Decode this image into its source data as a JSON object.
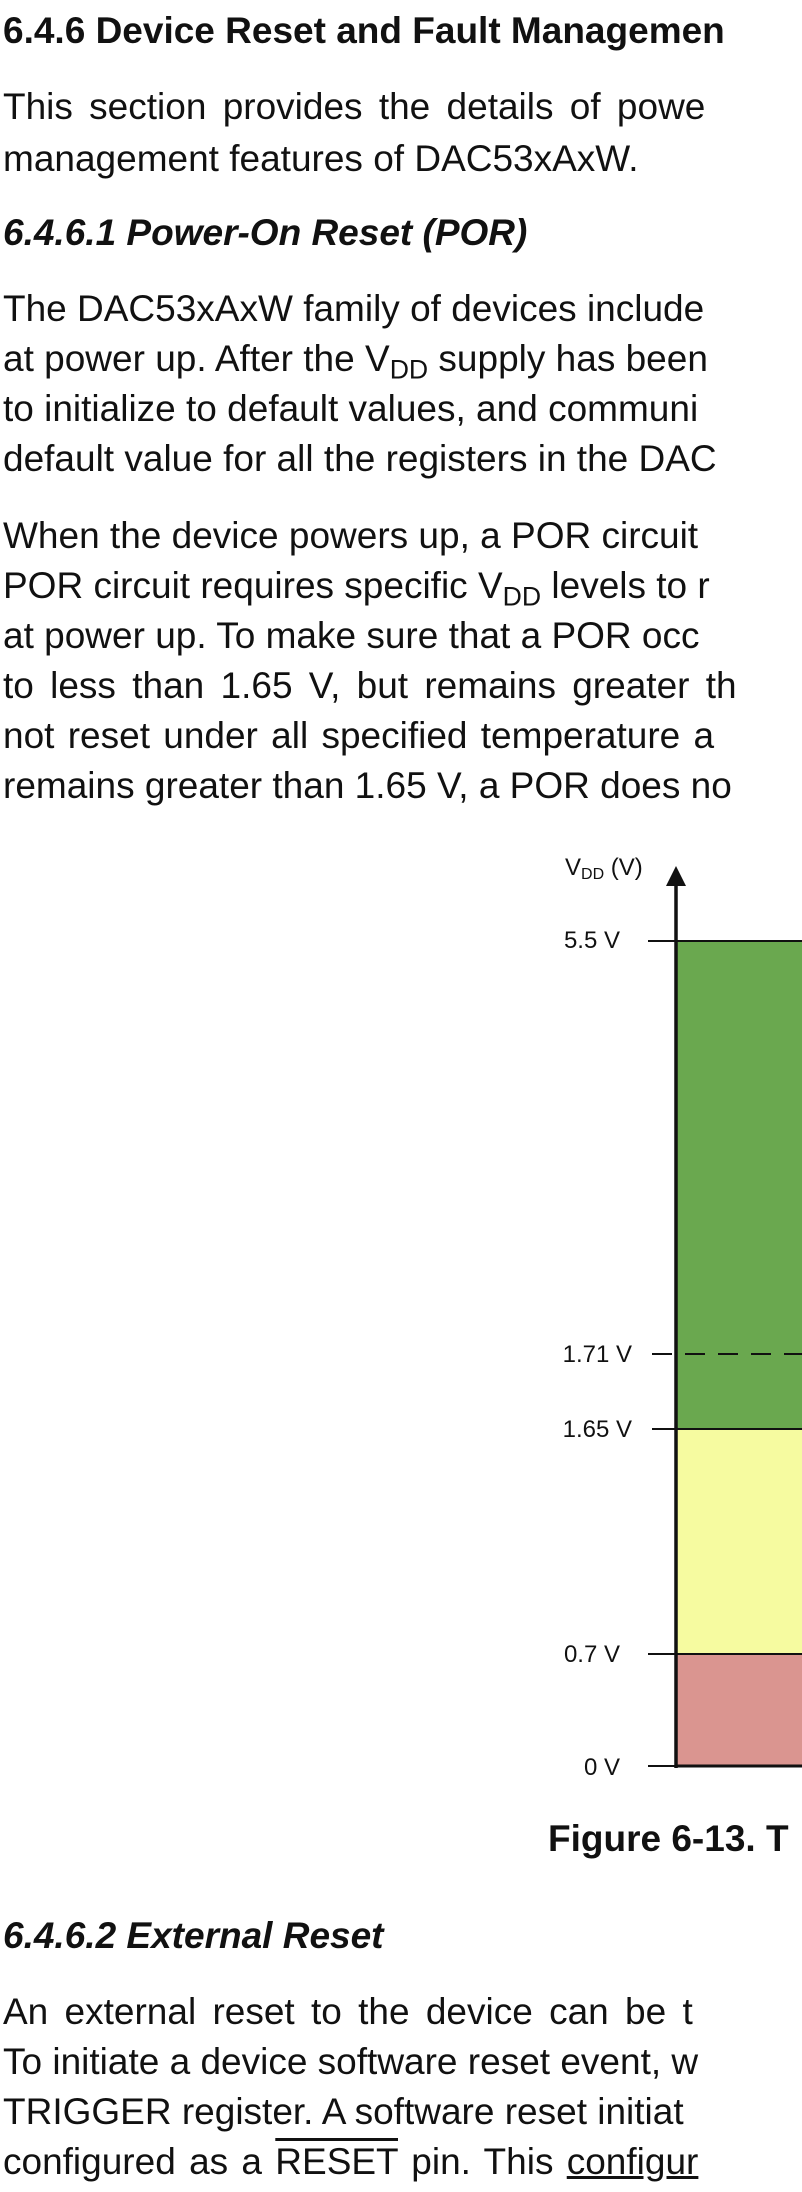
{
  "section": {
    "heading": "6.4.6 Device Reset and Fault Managemen",
    "intro_lines": [
      "This section provides the details of powe",
      "management features of DAC53xAxW."
    ]
  },
  "por": {
    "heading": "6.4.6.1 Power-On Reset (POR)",
    "para1": {
      "line1": "The DAC53xAxW family of devices include",
      "line2_a": "at power up. After the V",
      "line2_sub": "DD",
      "line2_b": " supply has been",
      "line3": "to initialize to default values, and communi",
      "line4": "default value for all the registers in the DAC"
    },
    "para2": {
      "line1": "When the device powers up, a POR circuit",
      "line2_a": "POR circuit requires specific V",
      "line2_sub": "DD",
      "line2_b": " levels to r",
      "line3": "at power up. To make sure that a POR occ",
      "line4": "to less than 1.65 V, but remains greater th",
      "line5": "not reset under all specified temperature a",
      "line6": "remains greater than 1.65 V, a POR does no"
    }
  },
  "figure": {
    "axis_label_main": "V",
    "axis_label_sub": "DD",
    "axis_label_unit": " (V)",
    "ticks": [
      "5.5 V",
      "1.71 V",
      "1.65 V",
      "0.7 V",
      "0 V"
    ],
    "colors": {
      "green": "#6aa84f",
      "yellow": "#f6fba0",
      "red": "#da9590"
    },
    "caption": "Figure 6-13. T"
  },
  "external_reset": {
    "heading": "6.4.6.2 External Reset",
    "line1": "An external reset to the device can be t",
    "line2": "To initiate a device software reset event, w",
    "line3": "TRIGGER register. A software reset initiat",
    "line4_a": "configured as a ",
    "line4_over": "RESET",
    "line4_b": " pin. This ",
    "line4_ul": "configur"
  }
}
